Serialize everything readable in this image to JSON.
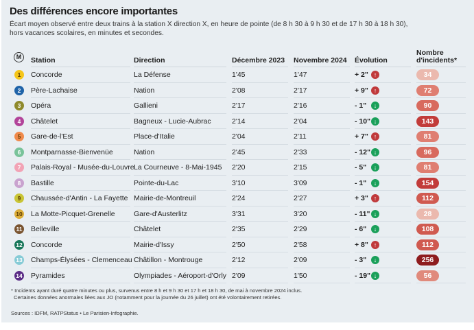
{
  "title": "Des différences encore importantes",
  "subtitle": "Écart moyen observé entre deux trains à la station X direction X, en heure de pointe (de 8 h 30 à 9 h 30 et de 17 h 30 à 18 h 30), hors vacances scolaires, en minutes et secondes.",
  "headers": {
    "metro_icon": "M",
    "station": "Station",
    "direction": "Direction",
    "dec": "Décembre 2023",
    "nov": "Novembre 2024",
    "evolution": "Évolution",
    "incidents_1": "Nombre",
    "incidents_2": "d'incidents*"
  },
  "colors": {
    "up": "#c0393b",
    "down": "#1aa05a"
  },
  "rows": [
    {
      "line": "1",
      "color": "#f5c518",
      "station": "Concorde",
      "direction": "La Défense",
      "dec": "1'45",
      "nov": "1'47",
      "evo": "+ 2\"",
      "trend": "up",
      "incidents": "34"
    },
    {
      "line": "2",
      "color": "#1f63a8",
      "station": "Père-Lachaise",
      "direction": "Nation",
      "dec": "2'08",
      "nov": "2'17",
      "evo": "+ 9\"",
      "trend": "up",
      "incidents": "72"
    },
    {
      "line": "3",
      "color": "#8f8a2c",
      "station": "Opéra",
      "direction": "Gallieni",
      "dec": "2'17",
      "nov": "2'16",
      "evo": "- 1\"",
      "trend": "down",
      "incidents": "90"
    },
    {
      "line": "4",
      "color": "#b2449a",
      "station": "Châtelet",
      "direction": "Bagneux - Lucie-Aubrac",
      "dec": "2'14",
      "nov": "2'04",
      "evo": "- 10\"",
      "trend": "down",
      "incidents": "143"
    },
    {
      "line": "5",
      "color": "#f08a4b",
      "station": "Gare-de-l'Est",
      "direction": "Place-d'Italie",
      "dec": "2'04",
      "nov": "2'11",
      "evo": "+ 7\"",
      "trend": "up",
      "incidents": "81"
    },
    {
      "line": "6",
      "color": "#79c39a",
      "station": "Montparnasse-Bienvenüe",
      "direction": "Nation",
      "dec": "2'45",
      "nov": "2'33",
      "evo": "- 12\"",
      "trend": "down",
      "incidents": "96"
    },
    {
      "line": "7",
      "color": "#f2a3b5",
      "station": "Palais-Royal - Musée-du-Louvre",
      "direction": "La Courneuve - 8-Mai-1945",
      "dec": "2'20",
      "nov": "2'15",
      "evo": "- 5\"",
      "trend": "down",
      "incidents": "81"
    },
    {
      "line": "8",
      "color": "#c9a3cf",
      "station": "Bastille",
      "direction": "Pointe-du-Lac",
      "dec": "3'10",
      "nov": "3'09",
      "evo": "- 1\"",
      "trend": "down",
      "incidents": "154"
    },
    {
      "line": "9",
      "color": "#c9c536",
      "station": "Chaussée-d'Antin - La Fayette",
      "direction": "Mairie-de-Montreuil",
      "dec": "2'24",
      "nov": "2'27",
      "evo": "+ 3\"",
      "trend": "up",
      "incidents": "112"
    },
    {
      "line": "10",
      "color": "#dcae3a",
      "station": "La Motte-Picquet-Grenelle",
      "direction": "Gare-d'Austerlitz",
      "dec": "3'31",
      "nov": "3'20",
      "evo": "- 11\"",
      "trend": "down",
      "incidents": "28"
    },
    {
      "line": "11",
      "color": "#7a5430",
      "station": "Belleville",
      "direction": "Châtelet",
      "dec": "2'35",
      "nov": "2'29",
      "evo": "- 6\"",
      "trend": "down",
      "incidents": "108"
    },
    {
      "line": "12",
      "color": "#18775a",
      "station": "Concorde",
      "direction": "Mairie-d'Issy",
      "dec": "2'50",
      "nov": "2'58",
      "evo": "+ 8\"",
      "trend": "up",
      "incidents": "112"
    },
    {
      "line": "13",
      "color": "#86cbd6",
      "station": "Champs-Élysées - Clemenceau",
      "direction": "Châtillon - Montrouge",
      "dec": "2'12",
      "nov": "2'09",
      "evo": "- 3\"",
      "trend": "down",
      "incidents": "256"
    },
    {
      "line": "14",
      "color": "#5b2d86",
      "station": "Pyramides",
      "direction": "Olympiades - Aéroport-d'Orly",
      "dec": "2'09",
      "nov": "1'50",
      "evo": "- 19\"",
      "trend": "down",
      "incidents": "56"
    }
  ],
  "footnote_1": "* Incidents ayant duré quatre minutes ou plus, survenus entre 8 h et 9 h 30 et 17 h et 18 h 30, de mai à novembre 2024 inclus.",
  "footnote_2": "Certaines données anormales liées aux JO (notamment pour la journée du 26 juillet) ont été volontairement retirées.",
  "sources": "Sources : IDFM, RATPStatus • Le Parisien-Infographie."
}
